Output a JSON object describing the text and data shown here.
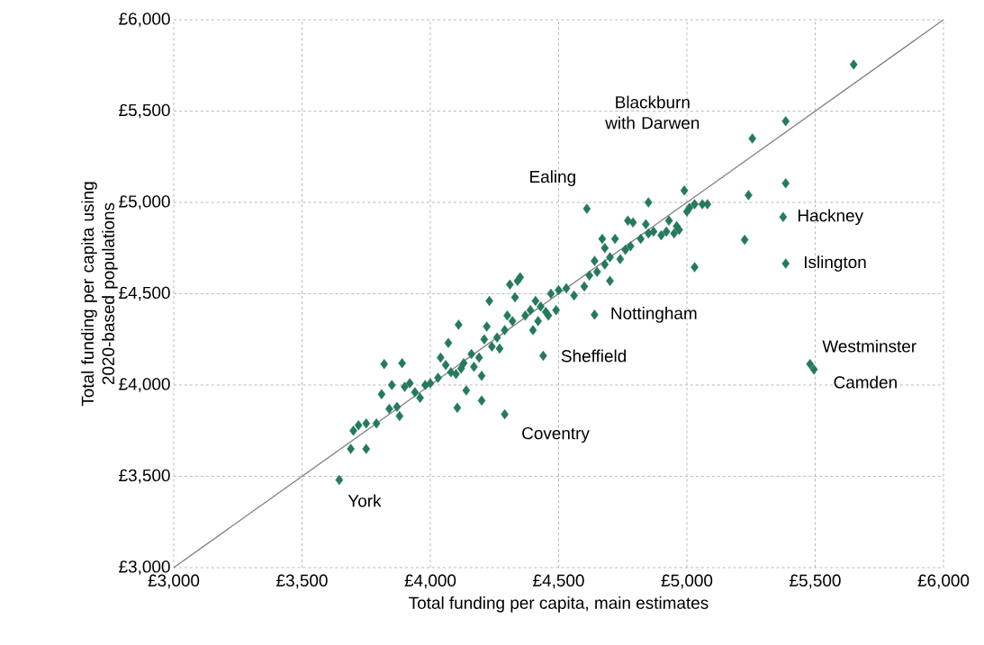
{
  "chart_data": {
    "type": "scatter",
    "xlabel": "Total funding per capita, main estimates",
    "ylabel": "Total funding per capita using 2020-based populations",
    "marker": "diamond",
    "grid": true,
    "xlim": [
      3000,
      6000
    ],
    "ylim": [
      3000,
      6000
    ],
    "xticks": [
      {
        "value": 3000,
        "label": "£3,000"
      },
      {
        "value": 3500,
        "label": "£3,500"
      },
      {
        "value": 4000,
        "label": "£4,000"
      },
      {
        "value": 4500,
        "label": "£4,500"
      },
      {
        "value": 5000,
        "label": "£5,000"
      },
      {
        "value": 5500,
        "label": "£5,500"
      },
      {
        "value": 6000,
        "label": "£6,000"
      }
    ],
    "yticks": [
      {
        "value": 3000,
        "label": "£3,000"
      },
      {
        "value": 3500,
        "label": "£3,500"
      },
      {
        "value": 4000,
        "label": "£4,000"
      },
      {
        "value": 4500,
        "label": "£4,500"
      },
      {
        "value": 5000,
        "label": "£5,000"
      },
      {
        "value": 5500,
        "label": "£5,500"
      },
      {
        "value": 6000,
        "label": "£6,000"
      }
    ],
    "series": [
      {
        "type": "line",
        "color": "#808080",
        "marker": "none",
        "x": [
          3000,
          6000
        ],
        "values": [
          3000,
          6000
        ]
      },
      {
        "color": "#247a5a",
        "x": [
          5650,
          5385,
          5255,
          5240,
          5385,
          5225,
          5375,
          5030,
          5385,
          5480,
          5495,
          4990,
          4850,
          4610,
          4640,
          4440,
          4290,
          3645,
          4105,
          4200,
          3750,
          3690,
          3700,
          3720,
          3750,
          3790,
          3810,
          3820,
          3840,
          3850,
          3870,
          3880,
          3890,
          3900,
          3920,
          3940,
          3960,
          3980,
          4000,
          4030,
          4040,
          4060,
          4070,
          4080,
          4100,
          4110,
          4120,
          4130,
          4140,
          4160,
          4170,
          4190,
          4200,
          4210,
          4220,
          4230,
          4240,
          4260,
          4270,
          4290,
          4300,
          4310,
          4320,
          4330,
          4340,
          4350,
          4370,
          4390,
          4400,
          4410,
          4420,
          4430,
          4450,
          4460,
          4470,
          4490,
          4500,
          4530,
          4560,
          4600,
          4620,
          4640,
          4650,
          4670,
          4680,
          4700,
          4700,
          4720,
          4740,
          4760,
          4780,
          4790,
          4820,
          4840,
          4850,
          4870,
          4900,
          4920,
          4930,
          4950,
          4960,
          4970,
          5000,
          5010,
          5030,
          5060,
          5080,
          4770,
          4680
        ],
        "values": [
          5755,
          5445,
          5350,
          5040,
          5105,
          4795,
          4920,
          4645,
          4665,
          4115,
          4085,
          5065,
          5000,
          4965,
          4385,
          4160,
          3840,
          3480,
          3875,
          3915,
          3650,
          3650,
          3750,
          3780,
          3790,
          3790,
          3950,
          4115,
          3870,
          4000,
          3880,
          3830,
          4120,
          3990,
          4010,
          3960,
          3930,
          4000,
          4010,
          4040,
          4150,
          4110,
          4230,
          4070,
          4060,
          4330,
          4090,
          4120,
          3970,
          4170,
          4100,
          4150,
          4050,
          4250,
          4320,
          4460,
          4210,
          4260,
          4200,
          4300,
          4380,
          4550,
          4350,
          4480,
          4570,
          4590,
          4380,
          4410,
          4300,
          4460,
          4350,
          4430,
          4400,
          4380,
          4500,
          4410,
          4520,
          4530,
          4490,
          4540,
          4600,
          4680,
          4620,
          4800,
          4660,
          4700,
          4570,
          4800,
          4690,
          4740,
          4760,
          4890,
          4800,
          4880,
          4830,
          4840,
          4820,
          4840,
          4900,
          4830,
          4870,
          4850,
          4950,
          4970,
          4990,
          4990,
          4990,
          4900,
          4750
        ]
      }
    ],
    "annotations": [
      "Blackburn with Darwen",
      {
        "text": "Ealing",
        "x": 4610,
        "y": 4965
      },
      {
        "text": "Hackney",
        "x": 5375,
        "y": 4920
      },
      {
        "text": "Islington",
        "x": 5385,
        "y": 4665
      },
      {
        "text": "Nottingham",
        "x": 4640,
        "y": 4385
      },
      {
        "text": "Sheffield",
        "x": 4440,
        "y": 4160
      },
      {
        "text": "Westminster",
        "x": 5480,
        "y": 4115
      },
      {
        "text": "Camden",
        "x": 5495,
        "y": 4085
      },
      {
        "text": "Coventry",
        "x": 4290,
        "y": 3840
      },
      {
        "text": "York",
        "x": 3645,
        "y": 3480
      }
    ]
  }
}
